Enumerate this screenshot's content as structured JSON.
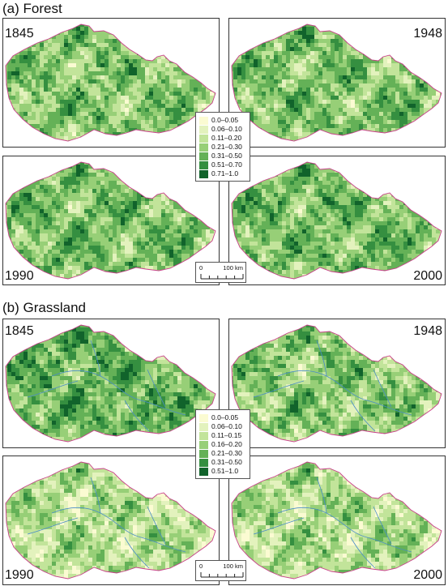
{
  "forest": {
    "title": "(a) Forest",
    "years": [
      "1845",
      "1948",
      "1990",
      "2000"
    ],
    "legend": [
      {
        "label": "0.0–0.05",
        "color": "#fbfbd2"
      },
      {
        "label": "0.06–0.10",
        "color": "#e3f2bd"
      },
      {
        "label": "0.11–0.20",
        "color": "#c2e49a"
      },
      {
        "label": "0.21–0.30",
        "color": "#97cf77"
      },
      {
        "label": "0.31–0.50",
        "color": "#64b157"
      },
      {
        "label": "0.51–0.70",
        "color": "#358f40"
      },
      {
        "label": "0.71–1.0",
        "color": "#11632b"
      }
    ],
    "scale": {
      "start": "0",
      "end": "100 km"
    }
  },
  "grassland": {
    "title": "(b) Grassland",
    "years": [
      "1845",
      "1948",
      "1990",
      "2000"
    ],
    "legend": [
      {
        "label": "0.0–0.05",
        "color": "#fbfbd2"
      },
      {
        "label": "0.06–0.10",
        "color": "#e3f2bd"
      },
      {
        "label": "0.11–0.15",
        "color": "#c2e49a"
      },
      {
        "label": "0.16–0.20",
        "color": "#97cf77"
      },
      {
        "label": "0.21–0.30",
        "color": "#64b157"
      },
      {
        "label": "0.31–0.50",
        "color": "#358f40"
      },
      {
        "label": "0.51–1.0",
        "color": "#11632b"
      }
    ],
    "scale": {
      "start": "0",
      "end": "100 km"
    }
  },
  "colors": {
    "border": "#c8408a",
    "river": "#4a8cc8"
  }
}
